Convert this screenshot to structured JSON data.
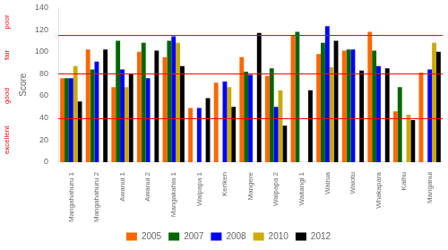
{
  "chart_data": {
    "type": "bar",
    "categories": [
      "Mangahahuru 1",
      "Mangahahuru 2",
      "Awanui 1",
      "Awanui 2",
      "Mangakahia 1",
      "Waipapa 1",
      "Keriken",
      "Mangere",
      "Waipapa 2",
      "Waitangi 1",
      "Wairua",
      "Waiotu",
      "Whakapara",
      "Kaihu",
      "Manganui"
    ],
    "series": [
      {
        "name": "2005",
        "color": "#FF6600",
        "values": [
          76,
          102,
          68,
          100,
          95,
          49,
          72,
          95,
          78,
          115,
          98,
          101,
          118,
          46,
          81
        ]
      },
      {
        "name": "2007",
        "color": "#006600",
        "values": [
          76,
          84,
          110,
          108,
          110,
          null,
          null,
          82,
          85,
          118,
          108,
          102,
          101,
          68,
          null
        ]
      },
      {
        "name": "2008",
        "color": "#0000FF",
        "values": [
          76,
          91,
          84,
          76,
          114,
          49,
          73,
          79,
          50,
          null,
          123,
          102,
          87,
          null,
          84
        ]
      },
      {
        "name": "2010",
        "color": "#CCAA00",
        "values": [
          87,
          null,
          68,
          null,
          108,
          null,
          68,
          null,
          65,
          null,
          86,
          null,
          null,
          43,
          108
        ]
      },
      {
        "name": "2012",
        "color": "#000000",
        "values": [
          55,
          102,
          80,
          101,
          87,
          58,
          50,
          117,
          33,
          65,
          110,
          83,
          85,
          38,
          100
        ]
      }
    ],
    "ylabel": "Score",
    "ylim": [
      0,
      140
    ],
    "yticks": [
      0,
      20,
      40,
      60,
      80,
      100,
      120,
      140
    ],
    "hlines": {
      "values": [
        40,
        80,
        115
      ],
      "color": "#FF0000"
    },
    "annotations": [
      {
        "text": "poor",
        "y": 127,
        "color": "#FF0000"
      },
      {
        "text": "fair",
        "y": 97,
        "color": "#FF0000"
      },
      {
        "text": "good",
        "y": 60,
        "color": "#FF0000"
      },
      {
        "text": "excellent",
        "y": 20,
        "color": "#FF0000"
      }
    ],
    "grid": false,
    "legend": "bottom"
  }
}
